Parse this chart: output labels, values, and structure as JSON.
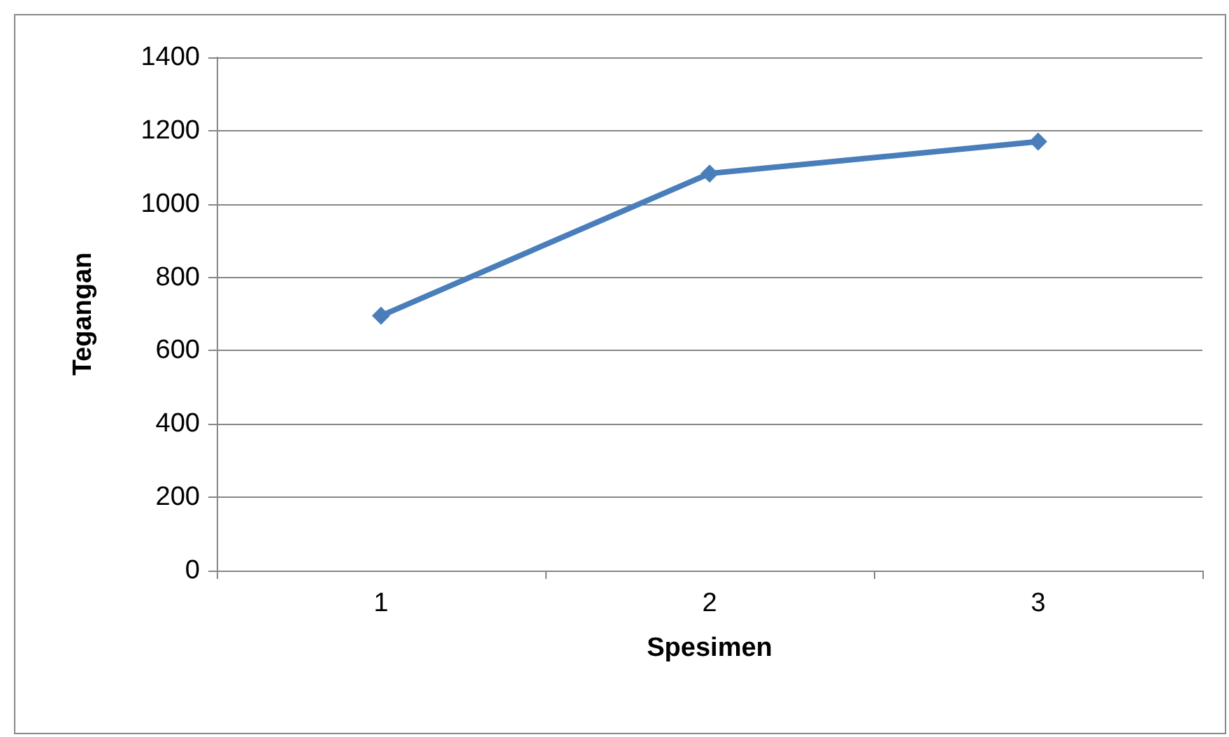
{
  "chart_data": {
    "type": "line",
    "xlabel": "Spesimen",
    "ylabel": "Tegangan",
    "categories": [
      "1",
      "2",
      "3"
    ],
    "series": [
      {
        "color": "#4a7ebb",
        "values": [
          695,
          1083,
          1170
        ]
      }
    ],
    "ylim": [
      0,
      1400
    ],
    "yticks": [
      0,
      200,
      400,
      600,
      800,
      1000,
      1200,
      1400
    ],
    "grid": "y",
    "marker": "diamond",
    "line_style": "solid"
  }
}
